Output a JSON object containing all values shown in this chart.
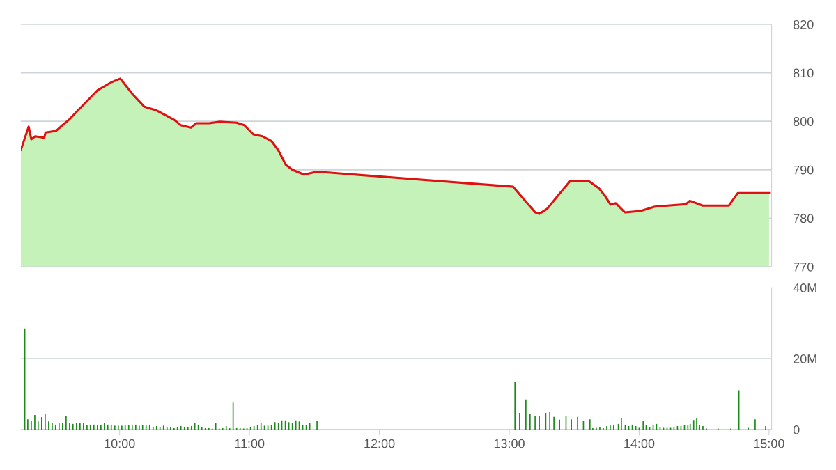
{
  "chart_data": [
    {
      "type": "area",
      "xlim": [
        9.24,
        15.02
      ],
      "ylim": [
        770,
        820
      ],
      "yticks": [
        770,
        780,
        790,
        800,
        810,
        820
      ],
      "tick_labels": "y",
      "grid": "y",
      "series": [
        {
          "type": "area",
          "color": "#c4f2b8",
          "x": [
            9.24,
            9.3,
            9.32,
            9.35,
            9.42,
            9.43,
            9.51,
            9.56,
            9.61,
            9.67,
            9.75,
            9.83,
            9.94,
            10.005,
            10.1,
            10.19,
            10.28,
            10.42,
            10.47,
            10.55,
            10.59,
            10.69,
            10.77,
            10.9,
            10.96,
            11.03,
            11.1,
            11.17,
            11.22,
            11.28,
            11.33,
            11.42,
            11.52,
            13.03,
            13.2,
            13.23,
            13.29,
            13.37,
            13.47,
            13.61,
            13.69,
            13.74,
            13.78,
            13.82,
            13.89,
            14.01,
            14.12,
            14.22,
            14.36,
            14.39,
            14.49,
            14.69,
            14.76,
            15.0
          ],
          "values": [
            794.1,
            798.9,
            796.3,
            796.9,
            796.6,
            797.7,
            798.0,
            799.2,
            800.3,
            802.0,
            804.2,
            806.4,
            808.1,
            808.8,
            805.6,
            803.0,
            802.3,
            800.3,
            799.2,
            798.7,
            799.6,
            799.6,
            799.9,
            799.7,
            799.2,
            797.3,
            796.9,
            795.9,
            794.1,
            791.0,
            790.0,
            789.0,
            789.6,
            786.5,
            781.2,
            780.9,
            781.9,
            784.5,
            787.7,
            787.7,
            786.2,
            784.5,
            782.8,
            783.1,
            781.2,
            781.5,
            782.4,
            782.6,
            782.9,
            783.6,
            782.6,
            782.6,
            785.2,
            785.2
          ]
        },
        {
          "type": "line",
          "color": "#e01010",
          "x": [
            9.24,
            9.3,
            9.32,
            9.35,
            9.42,
            9.43,
            9.51,
            9.56,
            9.61,
            9.67,
            9.75,
            9.83,
            9.94,
            10.005,
            10.1,
            10.19,
            10.28,
            10.42,
            10.47,
            10.55,
            10.59,
            10.69,
            10.77,
            10.9,
            10.96,
            11.03,
            11.1,
            11.17,
            11.22,
            11.28,
            11.33,
            11.42,
            11.52,
            13.03,
            13.2,
            13.23,
            13.29,
            13.37,
            13.47,
            13.61,
            13.69,
            13.74,
            13.78,
            13.82,
            13.89,
            14.01,
            14.12,
            14.22,
            14.36,
            14.39,
            14.49,
            14.69,
            14.76,
            15.0
          ],
          "values": [
            794.1,
            798.9,
            796.3,
            796.9,
            796.6,
            797.7,
            798.0,
            799.2,
            800.3,
            802.0,
            804.2,
            806.4,
            808.1,
            808.8,
            805.6,
            803.0,
            802.3,
            800.3,
            799.2,
            798.7,
            799.6,
            799.6,
            799.9,
            799.7,
            799.2,
            797.3,
            796.9,
            795.9,
            794.1,
            791.0,
            790.0,
            789.0,
            789.6,
            786.5,
            781.2,
            780.9,
            781.9,
            784.5,
            787.7,
            787.7,
            786.2,
            784.5,
            782.8,
            783.1,
            781.2,
            781.5,
            782.4,
            782.6,
            782.9,
            783.6,
            782.6,
            782.6,
            785.2,
            785.2
          ]
        }
      ]
    },
    {
      "type": "bar",
      "xlim": [
        9.24,
        15.02
      ],
      "ylim": [
        0,
        40
      ],
      "yticks": [
        0,
        {
          "value": 20,
          "label": "20M"
        },
        {
          "value": 40,
          "label": "40M"
        }
      ],
      "grid": "y",
      "xticks": [
        {
          "value": 10,
          "label": "10:00"
        },
        {
          "value": 11,
          "label": "11:00"
        },
        {
          "value": 12,
          "label": "12:00"
        },
        {
          "value": 13,
          "label": "13:00"
        },
        {
          "value": 14,
          "label": "14:00"
        },
        {
          "value": 15,
          "label": "15:00"
        }
      ],
      "series": [
        {
          "color": "#1a8a1a",
          "x": [
            9.27,
            9.293,
            9.32,
            9.347,
            9.373,
            9.4,
            9.427,
            9.454,
            9.481,
            9.507,
            9.534,
            9.561,
            9.588,
            9.615,
            9.641,
            9.668,
            9.695,
            9.722,
            9.749,
            9.775,
            9.802,
            9.829,
            9.856,
            9.883,
            9.909,
            9.936,
            9.963,
            9.99,
            10.017,
            10.043,
            10.07,
            10.097,
            10.124,
            10.151,
            10.177,
            10.204,
            10.231,
            10.258,
            10.285,
            10.311,
            10.338,
            10.365,
            10.392,
            10.419,
            10.445,
            10.472,
            10.499,
            10.526,
            10.553,
            10.579,
            10.606,
            10.633,
            10.66,
            10.687,
            10.713,
            10.74,
            10.767,
            10.794,
            10.821,
            10.847,
            10.874,
            10.901,
            10.928,
            10.955,
            10.981,
            11.008,
            11.035,
            11.062,
            11.089,
            11.115,
            11.142,
            11.169,
            11.196,
            11.223,
            11.249,
            11.276,
            11.303,
            11.33,
            11.357,
            11.383,
            11.41,
            11.437,
            11.464,
            11.52,
            13.044,
            13.08,
            13.128,
            13.16,
            13.199,
            13.231,
            13.281,
            13.312,
            13.344,
            13.387,
            13.437,
            13.478,
            13.526,
            13.571,
            13.621,
            13.643,
            13.67,
            13.697,
            13.724,
            13.751,
            13.777,
            13.804,
            13.84,
            13.863,
            13.893,
            13.92,
            13.947,
            13.974,
            14.0,
            14.031,
            14.054,
            14.081,
            14.108,
            14.134,
            14.161,
            14.188,
            14.215,
            14.242,
            14.268,
            14.295,
            14.322,
            14.349,
            14.375,
            14.393,
            14.42,
            14.443,
            14.465,
            14.491,
            14.518,
            14.608,
            14.706,
            14.768,
            14.84,
            14.893,
            14.974
          ],
          "values": [
            28.5,
            2.9,
            2.4,
            4.1,
            2.3,
            3.5,
            4.5,
            2.3,
            1.8,
            1.4,
            1.9,
            1.9,
            3.9,
            1.9,
            1.6,
            1.9,
            1.9,
            1.9,
            1.4,
            1.4,
            1.4,
            1.2,
            1.4,
            1.8,
            1.4,
            1.4,
            1.1,
            1.1,
            1.1,
            1.2,
            1.2,
            1.4,
            1.4,
            1.1,
            1.2,
            1.2,
            1.4,
            0.8,
            1.0,
            0.8,
            1.1,
            0.8,
            0.8,
            0.6,
            0.8,
            1.0,
            0.8,
            0.8,
            1.0,
            1.8,
            1.4,
            0.8,
            0.5,
            0.5,
            0.3,
            1.8,
            0.3,
            0.6,
            1.0,
            0.6,
            7.6,
            0.6,
            0.5,
            0.3,
            0.6,
            0.8,
            1.0,
            1.2,
            1.8,
            1.1,
            1.1,
            1.2,
            2.1,
            1.8,
            2.6,
            2.6,
            2.1,
            1.8,
            2.6,
            2.3,
            1.4,
            1.2,
            1.8,
            2.5,
            13.4,
            4.7,
            8.5,
            4.4,
            3.9,
            3.9,
            4.7,
            5.0,
            3.6,
            2.8,
            3.9,
            2.9,
            3.6,
            2.5,
            2.9,
            0.5,
            0.7,
            0.8,
            0.5,
            1.0,
            1.2,
            1.3,
            1.6,
            3.3,
            1.3,
            1.0,
            1.4,
            1.0,
            0.7,
            2.5,
            1.3,
            0.8,
            1.2,
            1.6,
            0.8,
            0.7,
            0.7,
            0.7,
            0.8,
            1.0,
            1.0,
            1.3,
            1.2,
            1.6,
            2.7,
            3.3,
            1.2,
            1.0,
            0.3,
            0.3,
            0.3,
            11.1,
            0.7,
            2.9,
            1.0
          ]
        }
      ]
    }
  ]
}
